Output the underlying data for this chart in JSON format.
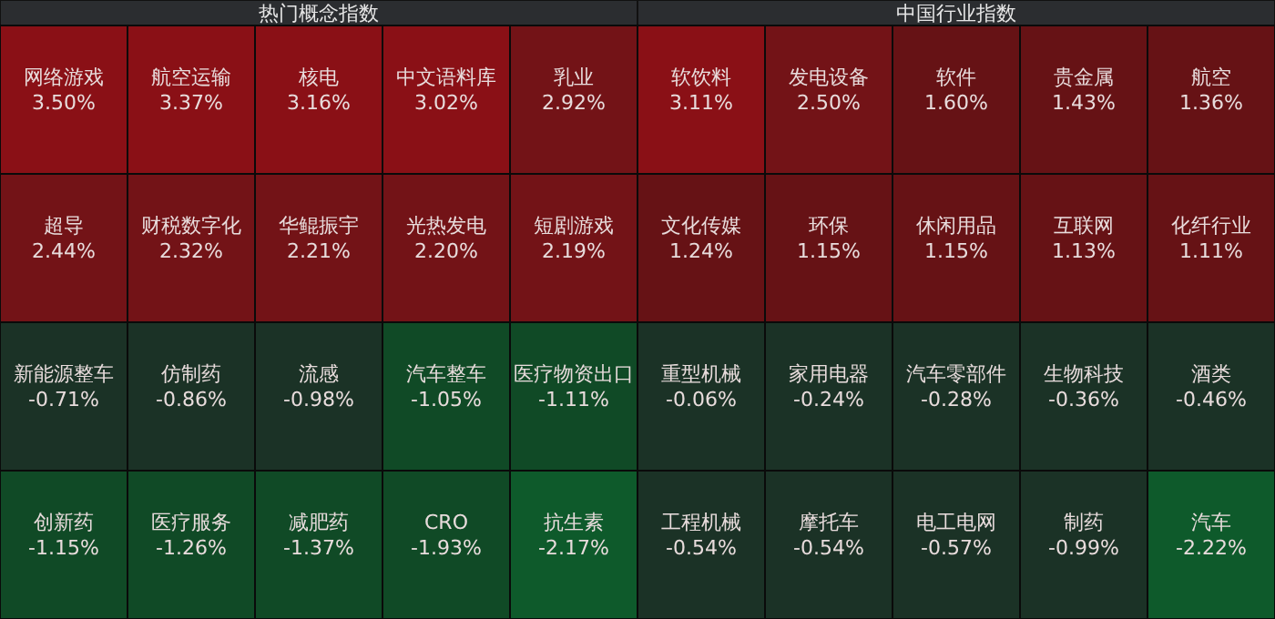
{
  "chart_data": [
    {
      "type": "other",
      "title": "热门概念指数",
      "categories": [
        "网络游戏",
        "航空运输",
        "核电",
        "中文语料库",
        "乳业",
        "超导",
        "财税数字化",
        "华鲲振宇",
        "光热发电",
        "短剧游戏",
        "新能源整车",
        "仿制药",
        "流感",
        "汽车整车",
        "医疗物资出口",
        "创新药",
        "医疗服务",
        "减肥药",
        "CRO",
        "抗生素"
      ],
      "values": [
        3.5,
        3.37,
        3.16,
        3.02,
        2.92,
        2.44,
        2.32,
        2.21,
        2.2,
        2.19,
        -0.71,
        -0.86,
        -0.98,
        -1.05,
        -1.11,
        -1.15,
        -1.26,
        -1.37,
        -1.93,
        -2.17
      ],
      "value_labels": [
        "3.50%",
        "3.37%",
        "3.16%",
        "3.02%",
        "2.92%",
        "2.44%",
        "2.32%",
        "2.21%",
        "2.20%",
        "2.19%",
        "-0.71%",
        "-0.86%",
        "-0.98%",
        "-1.05%",
        "-1.11%",
        "-1.15%",
        "-1.26%",
        "-1.37%",
        "-1.93%",
        "-2.17%"
      ]
    },
    {
      "type": "other",
      "title": "中国行业指数",
      "categories": [
        "软饮料",
        "发电设备",
        "软件",
        "贵金属",
        "航空",
        "文化传媒",
        "环保",
        "休闲用品",
        "互联网",
        "化纤行业",
        "重型机械",
        "家用电器",
        "汽车零部件",
        "生物科技",
        "酒类",
        "工程机械",
        "摩托车",
        "电工电网",
        "制药",
        "汽车"
      ],
      "values": [
        3.11,
        2.5,
        1.6,
        1.43,
        1.36,
        1.24,
        1.15,
        1.15,
        1.13,
        1.11,
        -0.06,
        -0.24,
        -0.28,
        -0.36,
        -0.46,
        -0.54,
        -0.54,
        -0.57,
        -0.99,
        -2.22
      ],
      "value_labels": [
        "3.11%",
        "2.50%",
        "1.60%",
        "1.43%",
        "1.36%",
        "1.24%",
        "1.15%",
        "1.15%",
        "1.13%",
        "1.11%",
        "-0.06%",
        "-0.24%",
        "-0.28%",
        "-0.36%",
        "-0.46%",
        "-0.54%",
        "-0.54%",
        "-0.57%",
        "-0.99%",
        "-2.22%"
      ]
    }
  ]
}
